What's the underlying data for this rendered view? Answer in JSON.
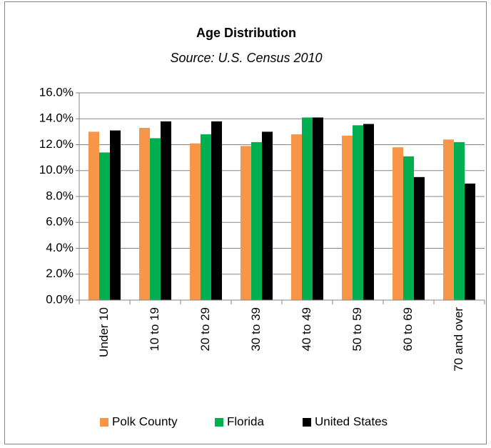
{
  "chart_data": {
    "type": "bar",
    "title": "Age Distribution",
    "subtitle": "Source: U.S. Census 2010",
    "categories": [
      "Under 10",
      "10 to 19",
      "20 to 29",
      "30 to 39",
      "40 to 49",
      "50 to 59",
      "60 to 69",
      "70 and over"
    ],
    "series": [
      {
        "name": "Polk County",
        "color": "#f79646",
        "values": [
          13.0,
          13.3,
          12.1,
          11.9,
          12.8,
          12.7,
          11.8,
          12.4
        ]
      },
      {
        "name": "Florida",
        "color": "#00b050",
        "values": [
          11.4,
          12.5,
          12.8,
          12.2,
          14.1,
          13.5,
          11.1,
          12.2
        ]
      },
      {
        "name": "United States",
        "color": "#000000",
        "values": [
          13.1,
          13.8,
          13.8,
          13.0,
          14.1,
          13.6,
          9.5,
          9.0
        ]
      }
    ],
    "ylim": [
      0,
      16
    ],
    "yticks": [
      {
        "value": 0,
        "label": "0.0%"
      },
      {
        "value": 2,
        "label": "2.0%"
      },
      {
        "value": 4,
        "label": "4.0%"
      },
      {
        "value": 6,
        "label": "6.0%"
      },
      {
        "value": 8,
        "label": "8.0%"
      },
      {
        "value": 10,
        "label": "10.0%"
      },
      {
        "value": 12,
        "label": "12.0%"
      },
      {
        "value": 14,
        "label": "14.0%"
      },
      {
        "value": 16,
        "label": "16.0%"
      }
    ],
    "grid": true,
    "legend": "bottom"
  }
}
